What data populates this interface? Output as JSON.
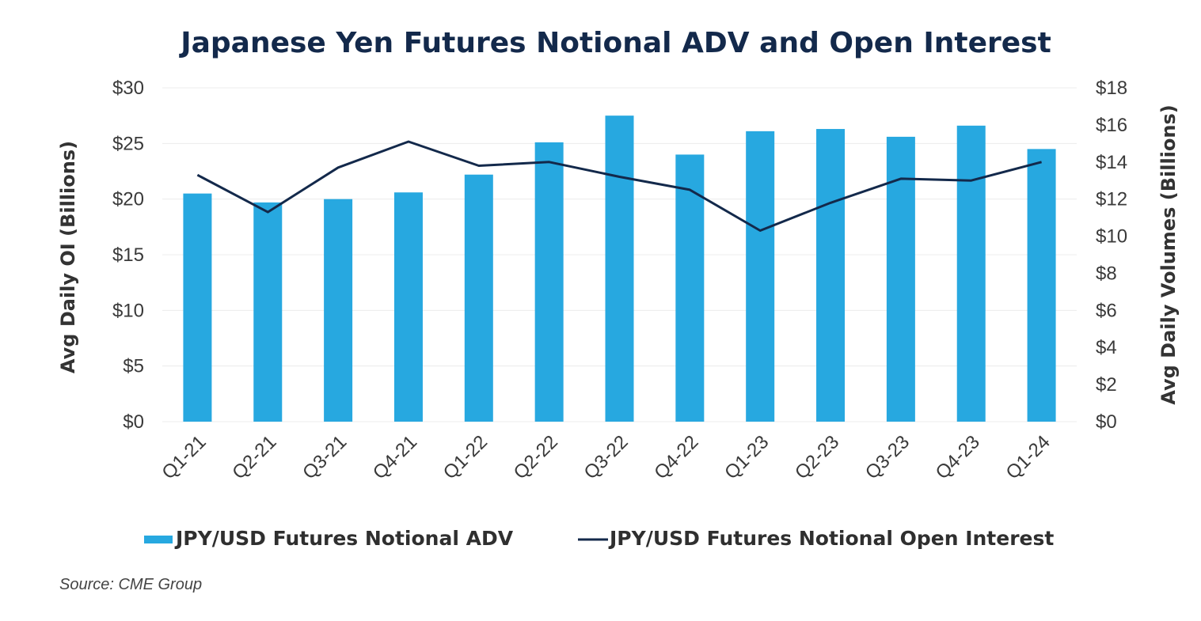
{
  "chart_data": {
    "type": "bar",
    "title": "Japanese Yen Futures Notional ADV and Open Interest",
    "categories": [
      "Q1-21",
      "Q2-21",
      "Q3-21",
      "Q4-21",
      "Q1-22",
      "Q2-22",
      "Q3-22",
      "Q4-22",
      "Q1-23",
      "Q2-23",
      "Q3-23",
      "Q4-23",
      "Q1-24"
    ],
    "series": [
      {
        "name": "JPY/USD Futures Notional ADV",
        "type": "bar",
        "axis": "left",
        "color": "#27a8e0",
        "values": [
          20.5,
          19.7,
          20.0,
          20.6,
          22.2,
          25.1,
          27.5,
          24.0,
          26.1,
          26.3,
          25.6,
          26.6,
          24.5
        ]
      },
      {
        "name": "JPY/USD Futures Notional Open Interest",
        "type": "line",
        "axis": "right",
        "color": "#13294b",
        "values": [
          13.3,
          11.3,
          13.7,
          15.1,
          13.8,
          14.0,
          13.2,
          12.5,
          10.3,
          11.8,
          13.1,
          13.0,
          14.0
        ]
      }
    ],
    "ylabel": "Avg Daily OI (Billions)",
    "y2label": "Avg Daily Volumes (Billions)",
    "ylim": [
      0,
      30
    ],
    "y2lim": [
      0,
      18
    ],
    "yticks": [
      "$0",
      "$5",
      "$10",
      "$15",
      "$20",
      "$25",
      "$30"
    ],
    "y2ticks": [
      "$0",
      "$2",
      "$4",
      "$6",
      "$8",
      "$10",
      "$12",
      "$14",
      "$16",
      "$18"
    ],
    "grid": true,
    "legend_position": "bottom",
    "source": "Source: CME Group"
  }
}
